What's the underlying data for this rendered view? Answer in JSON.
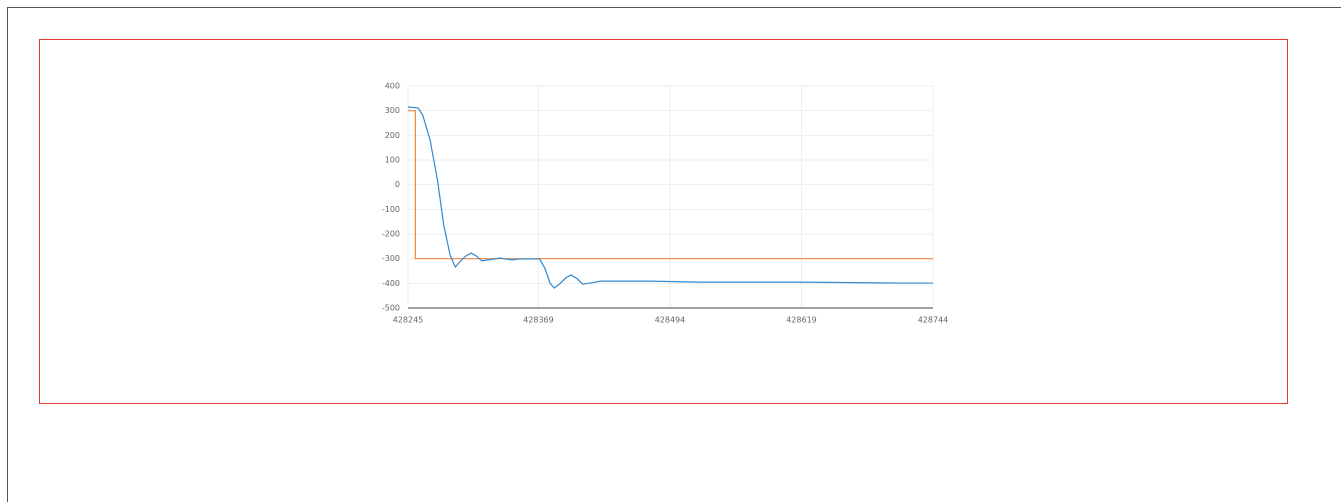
{
  "chart_data": {
    "type": "line",
    "xlim": [
      428245,
      428744
    ],
    "xticks": [
      428245,
      428369,
      428494,
      428619,
      428744
    ],
    "ylim": [
      -500,
      400
    ],
    "yticks": [
      -500,
      -400,
      -300,
      -200,
      -100,
      0,
      100,
      200,
      300,
      400
    ],
    "grid": true,
    "series": [
      {
        "color": "#f0883e",
        "x": [
          428245,
          428252,
          428252,
          428744
        ],
        "values": [
          300,
          300,
          -300,
          -300
        ]
      },
      {
        "color": "#3189cf",
        "x": [
          428245,
          428254.5,
          428259,
          428266,
          428273,
          428279,
          428285,
          428290,
          428294,
          428300,
          428305,
          428310,
          428315,
          428321,
          428327,
          428332,
          428338,
          428344,
          428351,
          428370,
          428375,
          428380,
          428384,
          428389,
          428395,
          428400,
          428406,
          428411,
          428418,
          428428,
          428447,
          428475,
          428523,
          428618,
          428713,
          428744
        ],
        "values": [
          315,
          311,
          282,
          181,
          19,
          -164,
          -285,
          -334,
          -314,
          -289,
          -277,
          -289,
          -309,
          -305,
          -301,
          -297,
          -301,
          -305,
          -301,
          -301,
          -338,
          -399,
          -419,
          -403,
          -378,
          -366,
          -382,
          -403,
          -399,
          -391,
          -391,
          -391,
          -395,
          -395,
          -399,
          -399
        ]
      }
    ]
  }
}
